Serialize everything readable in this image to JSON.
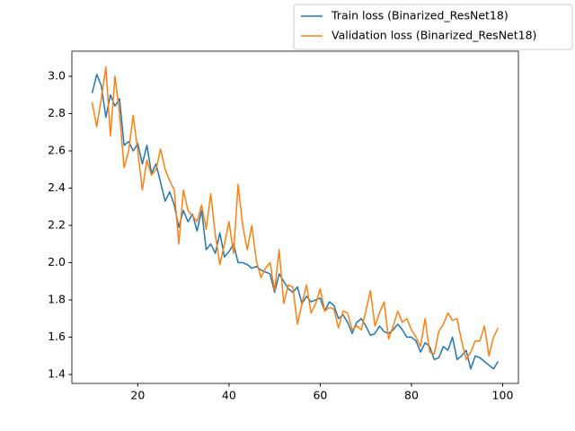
{
  "chart_data": {
    "type": "line",
    "x": [
      10,
      11,
      12,
      13,
      14,
      15,
      16,
      17,
      18,
      19,
      20,
      21,
      22,
      23,
      24,
      25,
      26,
      27,
      28,
      29,
      30,
      31,
      32,
      33,
      34,
      35,
      36,
      37,
      38,
      39,
      40,
      41,
      42,
      43,
      44,
      45,
      46,
      47,
      48,
      49,
      50,
      51,
      52,
      53,
      54,
      55,
      56,
      57,
      58,
      59,
      60,
      61,
      62,
      63,
      64,
      65,
      66,
      67,
      68,
      69,
      70,
      71,
      72,
      73,
      74,
      75,
      76,
      77,
      78,
      79,
      80,
      81,
      82,
      83,
      84,
      85,
      86,
      87,
      88,
      89,
      90,
      91,
      92,
      93,
      94,
      95,
      96,
      97,
      98,
      99
    ],
    "series": [
      {
        "name": "Train loss (Binarized_ResNet18)",
        "color": "#1f77b4",
        "values": [
          2.91,
          3.01,
          2.95,
          2.78,
          2.9,
          2.84,
          2.88,
          2.63,
          2.65,
          2.6,
          2.64,
          2.53,
          2.63,
          2.48,
          2.53,
          2.43,
          2.33,
          2.38,
          2.31,
          2.19,
          2.28,
          2.22,
          2.26,
          2.17,
          2.28,
          2.07,
          2.1,
          2.05,
          2.16,
          2.03,
          2.06,
          2.1,
          2.0,
          2.0,
          1.99,
          1.97,
          1.98,
          1.96,
          1.95,
          1.94,
          1.84,
          1.94,
          1.9,
          1.86,
          1.84,
          1.87,
          1.78,
          1.82,
          1.79,
          1.8,
          1.81,
          1.74,
          1.79,
          1.77,
          1.7,
          1.72,
          1.68,
          1.62,
          1.68,
          1.7,
          1.66,
          1.61,
          1.62,
          1.66,
          1.63,
          1.62,
          1.64,
          1.67,
          1.64,
          1.6,
          1.6,
          1.58,
          1.52,
          1.57,
          1.55,
          1.48,
          1.49,
          1.55,
          1.53,
          1.6,
          1.48,
          1.5,
          1.53,
          1.43,
          1.5,
          1.49,
          1.47,
          1.45,
          1.43,
          1.47
        ]
      },
      {
        "name": "Validation loss (Binarized_ResNet18)",
        "color": "#ff7f0e",
        "values": [
          2.86,
          2.73,
          2.88,
          3.05,
          2.68,
          3.0,
          2.8,
          2.51,
          2.6,
          2.79,
          2.6,
          2.39,
          2.55,
          2.47,
          2.5,
          2.61,
          2.5,
          2.44,
          2.39,
          2.1,
          2.39,
          2.28,
          2.25,
          2.22,
          2.31,
          2.18,
          2.37,
          2.15,
          1.99,
          2.1,
          2.22,
          2.05,
          2.42,
          2.2,
          2.07,
          2.2,
          2.01,
          1.92,
          1.97,
          2.0,
          1.85,
          2.07,
          1.78,
          1.88,
          1.87,
          1.67,
          1.78,
          1.88,
          1.73,
          1.78,
          1.86,
          1.74,
          1.76,
          1.75,
          1.65,
          1.74,
          1.73,
          1.64,
          1.66,
          1.64,
          1.74,
          1.85,
          1.66,
          1.73,
          1.79,
          1.59,
          1.66,
          1.74,
          1.68,
          1.7,
          1.64,
          1.6,
          1.55,
          1.7,
          1.52,
          1.51,
          1.63,
          1.67,
          1.73,
          1.69,
          1.7,
          1.58,
          1.48,
          1.52,
          1.58,
          1.58,
          1.66,
          1.5,
          1.6,
          1.65
        ]
      }
    ],
    "xlim": [
      5.55,
      103.45
    ],
    "xticks": [
      20,
      40,
      60,
      80,
      100
    ],
    "ylim": [
      1.352,
      3.135
    ],
    "yticks": [
      1.4,
      1.6,
      1.8,
      {
        "value": 2.0,
        "label": "2.0"
      },
      2.2,
      2.4,
      2.6,
      2.8,
      {
        "value": 3.0,
        "label": "3.0"
      }
    ],
    "grid": false,
    "legend": "upper right"
  }
}
